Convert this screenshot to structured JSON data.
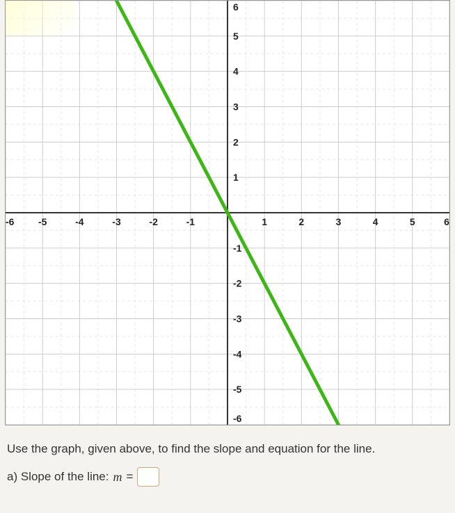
{
  "chart": {
    "type": "line",
    "xlim": [
      -6,
      6
    ],
    "ylim": [
      -6,
      6
    ],
    "xtick_step": 1,
    "ytick_step": 1,
    "xticks": [
      -6,
      -5,
      -4,
      -3,
      -2,
      -1,
      1,
      2,
      3,
      4,
      5,
      6
    ],
    "yticks": [
      -6,
      -5,
      -4,
      -3,
      -2,
      -1,
      1,
      2,
      3,
      4,
      5,
      6
    ],
    "line_points": [
      {
        "x": -3,
        "y": 6
      },
      {
        "x": 3,
        "y": -6
      }
    ],
    "line_color": "#3fb618",
    "line_width": 5,
    "grid_color": "#cccccc",
    "minor_grid_color": "#e5e5e5",
    "axis_color": "#333333",
    "background_color": "#ffffff",
    "tick_label_color": "#222222",
    "tick_label_fontsize": 14,
    "tick_label_fontweight": "bold",
    "minor_ticks": true
  },
  "prompt": {
    "instruction": "Use the graph, given above, to find the slope and equation for the line.",
    "part_a_label": "a) Slope of the line:",
    "variable": "m",
    "equals": "="
  },
  "input": {
    "slope_value": "",
    "slope_placeholder": ""
  }
}
